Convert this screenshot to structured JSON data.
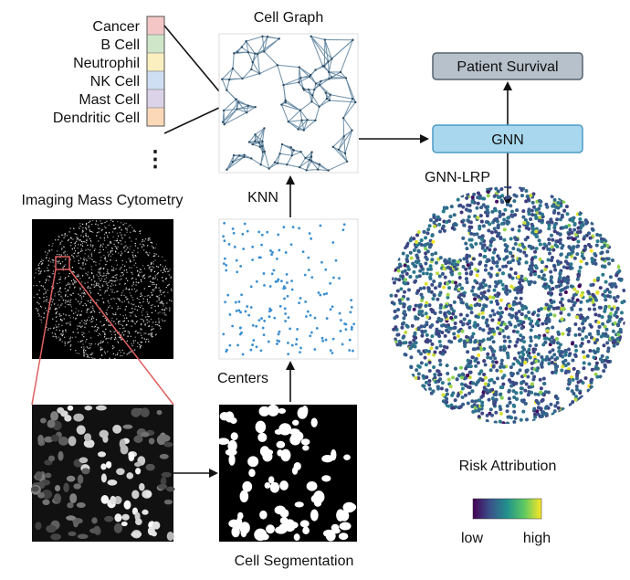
{
  "legend": {
    "items": [
      {
        "label": "Cancer",
        "color": "#f4c6c6"
      },
      {
        "label": "B Cell",
        "color": "#cfe6c9"
      },
      {
        "label": "Neutrophil",
        "color": "#fbefc0"
      },
      {
        "label": "NK Cell",
        "color": "#cfdff3"
      },
      {
        "label": "Mast Cell",
        "color": "#dcd3e8"
      },
      {
        "label": "Dendritic Cell",
        "color": "#fbd9b8"
      }
    ],
    "more": "⋮"
  },
  "labels": {
    "cell_graph": "Cell Graph",
    "imaging": "Imaging Mass Cytometry",
    "knn": "KNN",
    "centers": "Centers",
    "cell_segmentation": "Cell Segmentation",
    "gnn_lrp": "GNN-LRP",
    "risk_attribution": "Risk Attribution"
  },
  "boxes": {
    "patient_survival": "Patient Survival",
    "gnn": "GNN"
  },
  "colorbar": {
    "low": "low",
    "high": "high",
    "stops": [
      "#440154",
      "#3b528b",
      "#21918c",
      "#5ec962",
      "#fde725"
    ]
  },
  "colors": {
    "edge": "#6d8fa8",
    "point": "#3b8fd0",
    "highlight": "#e06060",
    "gnn_fill": "#a9d8ee",
    "gnn_stroke": "#4c9cc7",
    "survival_fill": "#b7c1cb",
    "survival_stroke": "#55626e"
  }
}
